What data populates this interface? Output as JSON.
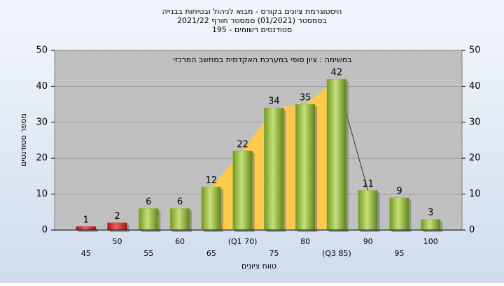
{
  "chart_data": {
    "type": "bar",
    "title": "היסטוגרמת ציונים בקורס - מבוא לניהול ובטיחות בבנייה",
    "subtitle": "בסמסטר  (01/2021)  סמסטר חורף 2021/22",
    "subtitle2": "סטודנטים רשומים - 195",
    "annotation": "במשימה : ציון סופי במערכת האקדמית במחשב המרכזי",
    "xlabel": "טווח ציונים",
    "ylabel": "מספר סטודנטים",
    "categories": [
      "45",
      "50",
      "55",
      "60",
      "65",
      "(Q1 70)",
      "75",
      "80",
      "(Q3 85)",
      "90",
      "95",
      "100"
    ],
    "values": [
      1,
      2,
      6,
      6,
      12,
      22,
      34,
      35,
      42,
      11,
      9,
      3
    ],
    "colors": [
      "#d42a2a",
      "#d42a2a",
      "#8fb53a",
      "#8fb53a",
      "#8fb53a",
      "#8fb53a",
      "#8fb53a",
      "#8fb53a",
      "#8fb53a",
      "#8fb53a",
      "#8fb53a",
      "#8fb53a"
    ],
    "ylim": [
      0,
      50
    ],
    "yticks": [
      0,
      10,
      20,
      30,
      40,
      50
    ],
    "y2lim": [
      0,
      50
    ],
    "y2ticks": [
      0,
      10,
      20,
      30,
      40,
      50
    ],
    "grid": true
  }
}
